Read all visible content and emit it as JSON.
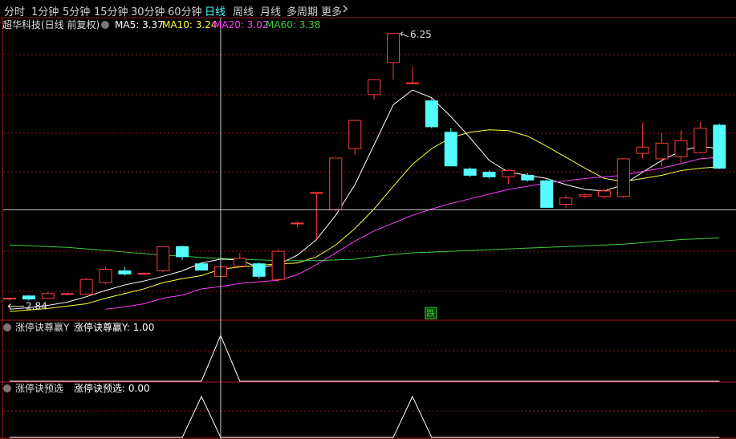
{
  "toolbar": {
    "items": [
      "分时",
      "1分钟",
      "5分钟",
      "15分钟",
      "30分钟",
      "60分钟",
      "日线",
      "周线",
      "月线",
      "多周期",
      "更多"
    ],
    "selected": 6
  },
  "cursor": {
    "index": 11,
    "price": 4.0
  },
  "chart_data": [
    {
      "type": "candlestick",
      "title": "超华科技(日线 前复权)",
      "ylim": [
        2.6,
        6.35
      ],
      "up_color": "#ff3c3c",
      "down_color": "#54fcfc",
      "open": [
        2.86,
        2.9,
        2.87,
        2.92,
        2.92,
        3.07,
        3.22,
        3.18,
        3.22,
        3.53,
        3.31,
        3.15,
        3.28,
        3.31,
        3.11,
        3.82,
        4.22,
        4.0,
        4.78,
        5.47,
        5.88,
        5.62,
        5.39,
        4.99,
        4.52,
        4.48,
        4.42,
        4.44,
        4.37,
        4.07,
        4.17,
        4.17,
        4.17,
        4.72,
        4.65,
        4.68,
        4.73,
        5.08
      ],
      "high": [
        2.88,
        2.91,
        2.95,
        2.94,
        3.13,
        3.27,
        3.27,
        3.2,
        3.53,
        3.54,
        3.33,
        3.3,
        3.45,
        3.33,
        3.49,
        3.85,
        4.22,
        4.66,
        5.14,
        5.66,
        6.25,
        5.83,
        5.42,
        5.04,
        4.54,
        4.5,
        4.52,
        4.47,
        4.39,
        4.18,
        4.21,
        4.27,
        4.65,
        5.11,
        4.98,
        5.02,
        5.12,
        5.1
      ],
      "low": [
        2.84,
        2.84,
        2.86,
        2.91,
        2.91,
        3.05,
        3.16,
        3.16,
        3.2,
        3.36,
        3.22,
        3.12,
        3.26,
        3.12,
        3.08,
        3.78,
        3.62,
        3.98,
        4.7,
        5.41,
        5.66,
        5.62,
        5.04,
        4.56,
        4.42,
        4.4,
        4.33,
        4.36,
        4.02,
        4.02,
        4.15,
        4.14,
        4.15,
        4.65,
        4.55,
        4.6,
        4.72,
        4.52
      ],
      "close": [
        2.87,
        2.86,
        2.93,
        2.93,
        3.11,
        3.24,
        3.18,
        3.19,
        3.53,
        3.4,
        3.23,
        3.27,
        3.38,
        3.15,
        3.47,
        3.83,
        4.22,
        4.66,
        5.14,
        5.66,
        6.25,
        5.62,
        5.06,
        4.56,
        4.44,
        4.42,
        4.5,
        4.38,
        4.03,
        4.15,
        4.19,
        4.24,
        4.65,
        4.8,
        4.85,
        4.88,
        5.04,
        4.53
      ],
      "series": [
        {
          "name": "MA5",
          "color": "#ffffff",
          "values": [
            2.73,
            2.75,
            2.78,
            2.82,
            2.89,
            2.97,
            3.04,
            3.09,
            3.15,
            3.22,
            3.32,
            3.37,
            3.36,
            3.26,
            3.3,
            3.42,
            3.62,
            3.93,
            4.32,
            4.83,
            5.34,
            5.53,
            5.43,
            5.19,
            4.92,
            4.63,
            4.48,
            4.44,
            4.4,
            4.32,
            4.26,
            4.24,
            4.32,
            4.48,
            4.63,
            4.75,
            4.81,
            4.78
          ]
        },
        {
          "name": "MA10",
          "color": "#ffff3c",
          "values": [
            2.7,
            2.72,
            2.74,
            2.77,
            2.8,
            2.87,
            2.93,
            2.99,
            3.07,
            3.12,
            3.16,
            3.24,
            3.27,
            3.29,
            3.31,
            3.32,
            3.4,
            3.55,
            3.76,
            4.01,
            4.3,
            4.58,
            4.78,
            4.92,
            4.99,
            5.02,
            5.01,
            4.94,
            4.81,
            4.67,
            4.53,
            4.4,
            4.36,
            4.4,
            4.44,
            4.5,
            4.53,
            4.55
          ]
        },
        {
          "name": "MA20",
          "color": "#ff3cff",
          "values": [
            null,
            null,
            null,
            null,
            null,
            2.73,
            2.76,
            2.8,
            2.87,
            2.91,
            2.99,
            3.02,
            3.06,
            3.08,
            3.1,
            3.17,
            3.3,
            3.45,
            3.6,
            3.73,
            3.83,
            3.93,
            4.01,
            4.08,
            4.14,
            4.2,
            4.26,
            4.3,
            4.34,
            4.37,
            4.4,
            4.42,
            4.44,
            4.49,
            4.53,
            4.59,
            4.65,
            4.67
          ]
        },
        {
          "name": "MA60",
          "color": "#3ccc3c",
          "values": [
            3.55,
            3.54,
            3.53,
            3.52,
            3.5,
            3.48,
            3.46,
            3.44,
            3.42,
            3.41,
            3.39,
            3.38,
            3.37,
            3.36,
            3.35,
            3.35,
            3.35,
            3.36,
            3.37,
            3.4,
            3.43,
            3.45,
            3.46,
            3.47,
            3.48,
            3.49,
            3.5,
            3.51,
            3.52,
            3.53,
            3.54,
            3.55,
            3.56,
            3.58,
            3.6,
            3.62,
            3.63,
            3.64
          ]
        }
      ],
      "annotations": [
        {
          "text": "跌",
          "index": 22
        }
      ]
    },
    {
      "type": "line",
      "title": "涨停诀尊赢Y",
      "ylim": [
        0,
        1
      ],
      "series": [
        {
          "name": "涨停诀尊赢Y",
          "color": "#ffffff",
          "values": [
            0,
            0,
            0,
            0,
            0,
            0,
            0,
            0,
            0,
            0,
            0,
            1,
            0,
            0,
            0,
            0,
            0,
            0,
            0,
            0,
            0,
            0,
            0,
            0,
            0,
            0,
            0,
            0,
            0,
            0,
            0,
            0,
            0,
            0,
            0,
            0,
            0,
            0
          ],
          "value_labels": [
            null,
            null,
            null,
            null,
            null,
            null,
            null,
            null,
            null,
            null,
            null,
            "1.00",
            null,
            null,
            null,
            null,
            null,
            null,
            null,
            null,
            null,
            null,
            null,
            null,
            null,
            null,
            null,
            null,
            null,
            null,
            null,
            null,
            null,
            null,
            null,
            null,
            null,
            null
          ]
        }
      ]
    },
    {
      "type": "line",
      "title": "涨停诀预选",
      "ylim": [
        0,
        1
      ],
      "series": [
        {
          "name": "涨停诀预选",
          "color": "#ffffff",
          "values": [
            0,
            0,
            0,
            0,
            0,
            0,
            0,
            0,
            0,
            0,
            1,
            0,
            0,
            0,
            0,
            0,
            0,
            0,
            0,
            0,
            0,
            1,
            0,
            0,
            0,
            0,
            0,
            0,
            0,
            0,
            0,
            0,
            0,
            0,
            0,
            0,
            0,
            0
          ],
          "value_labels": [
            null,
            null,
            null,
            null,
            null,
            null,
            null,
            null,
            null,
            null,
            null,
            "0.00",
            null,
            null,
            null,
            null,
            null,
            null,
            null,
            null,
            null,
            null,
            null,
            null,
            null,
            null,
            null,
            null,
            null,
            null,
            null,
            null,
            null,
            null,
            null,
            null,
            null,
            null
          ]
        }
      ]
    }
  ]
}
